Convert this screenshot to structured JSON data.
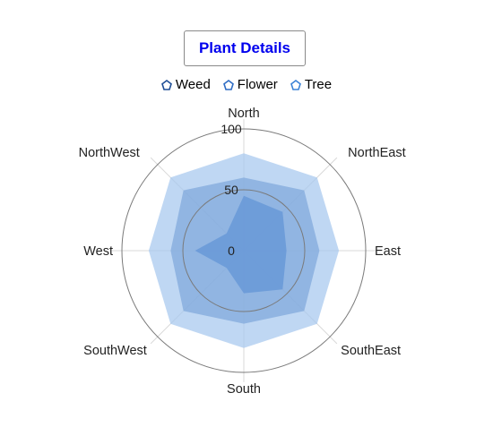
{
  "chart_data": {
    "type": "radar",
    "title": "Plant Details",
    "categories": [
      "North",
      "NorthEast",
      "East",
      "SouthEast",
      "South",
      "SouthWest",
      "West",
      "NorthWest"
    ],
    "series": [
      {
        "name": "Weed",
        "values": [
          80,
          85,
          78,
          85,
          80,
          85,
          78,
          85
        ],
        "color": "#aac9ef",
        "opacity": 0.75
      },
      {
        "name": "Flower",
        "values": [
          60,
          70,
          62,
          70,
          60,
          70,
          60,
          70
        ],
        "color": "#7ea6da",
        "opacity": 0.7
      },
      {
        "name": "Tree",
        "values": [
          45,
          45,
          35,
          45,
          35,
          20,
          40,
          20
        ],
        "color": "#5f93d6",
        "opacity": 0.7
      }
    ],
    "ylim": [
      0,
      100
    ],
    "ticks": [
      "0",
      "50",
      "100"
    ],
    "grid_circles": [
      50,
      100
    ],
    "legend_position": "top"
  },
  "legend_colors": {
    "Weed": "#1f4e96",
    "Flower": "#2e6cc4",
    "Tree": "#3b82d6"
  }
}
